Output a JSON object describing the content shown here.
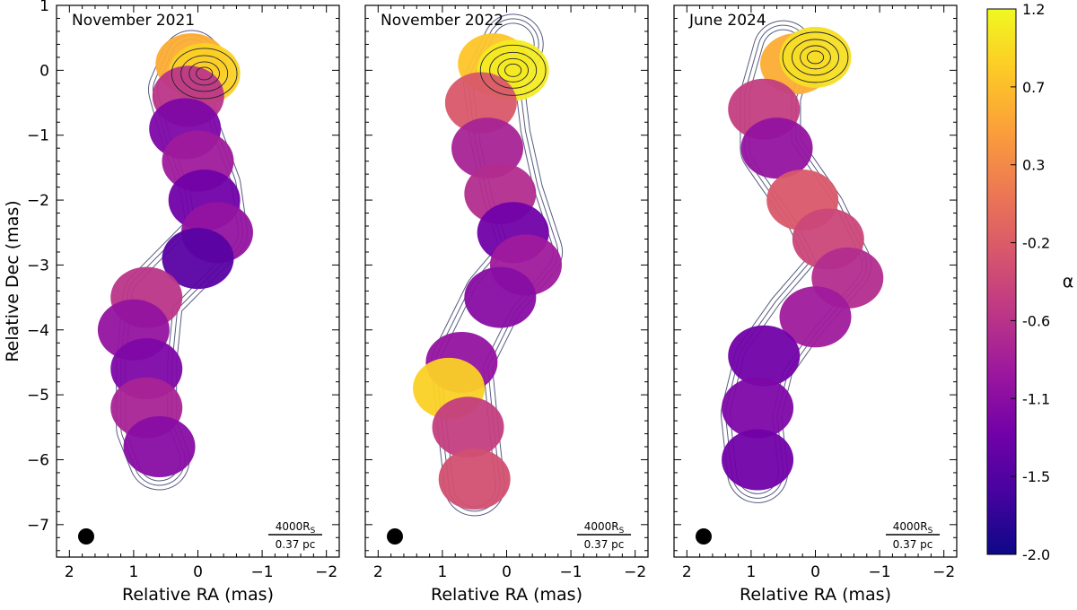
{
  "chart_data": {
    "type": "heatmap",
    "xlabel": "Relative RA (mas)",
    "ylabel": "Relative Dec (mas)",
    "xlim": [
      2.2,
      -2.2
    ],
    "ylim": [
      -7.5,
      1.0
    ],
    "x_ticks": [
      2,
      1,
      0,
      -1,
      -2
    ],
    "x_tick_labels": [
      "2",
      "1",
      "0",
      "−1",
      "−2"
    ],
    "y_ticks": [
      1,
      0,
      -1,
      -2,
      -3,
      -4,
      -5,
      -6,
      -7
    ],
    "y_tick_labels": [
      "1",
      "0",
      "−1",
      "−2",
      "−3",
      "−4",
      "−5",
      "−6",
      "−7"
    ],
    "panels": [
      {
        "title": "November 2021",
        "jet_path": [
          [
            0.1,
            0.15
          ],
          [
            0.3,
            -0.3
          ],
          [
            0.1,
            -1.0
          ],
          [
            -0.2,
            -1.8
          ],
          [
            -0.3,
            -2.5
          ],
          [
            0.7,
            -3.5
          ],
          [
            0.8,
            -4.5
          ],
          [
            0.8,
            -5.5
          ],
          [
            0.6,
            -6.0
          ]
        ],
        "spine": [
          {
            "x": 0.1,
            "y": 0.1,
            "a": 0.6
          },
          {
            "x": -0.1,
            "y": -0.05,
            "a": 0.9
          },
          {
            "x": 0.15,
            "y": -0.4,
            "a": -0.6
          },
          {
            "x": 0.2,
            "y": -0.9,
            "a": -1.2
          },
          {
            "x": 0.0,
            "y": -1.4,
            "a": -0.9
          },
          {
            "x": -0.1,
            "y": -2.0,
            "a": -1.3
          },
          {
            "x": -0.3,
            "y": -2.5,
            "a": -1.0
          },
          {
            "x": 0.0,
            "y": -2.9,
            "a": -1.5
          },
          {
            "x": 0.8,
            "y": -3.5,
            "a": -0.6
          },
          {
            "x": 1.0,
            "y": -4.0,
            "a": -1.0
          },
          {
            "x": 0.8,
            "y": -4.6,
            "a": -1.2
          },
          {
            "x": 0.8,
            "y": -5.2,
            "a": -0.8
          },
          {
            "x": 0.6,
            "y": -5.8,
            "a": -1.1
          }
        ]
      },
      {
        "title": "November 2022",
        "jet_path": [
          [
            -0.1,
            0.4
          ],
          [
            0.2,
            -0.2
          ],
          [
            0.1,
            -1.0
          ],
          [
            -0.1,
            -1.9
          ],
          [
            -0.4,
            -2.8
          ],
          [
            0.2,
            -3.5
          ],
          [
            0.7,
            -4.5
          ],
          [
            0.6,
            -5.5
          ],
          [
            0.5,
            -6.4
          ]
        ],
        "spine": [
          {
            "x": 0.2,
            "y": 0.1,
            "a": 0.8
          },
          {
            "x": -0.1,
            "y": 0.0,
            "a": 1.1
          },
          {
            "x": 0.4,
            "y": -0.5,
            "a": -0.2
          },
          {
            "x": 0.3,
            "y": -1.2,
            "a": -0.8
          },
          {
            "x": 0.1,
            "y": -1.9,
            "a": -0.7
          },
          {
            "x": -0.1,
            "y": -2.5,
            "a": -1.3
          },
          {
            "x": -0.3,
            "y": -3.0,
            "a": -0.9
          },
          {
            "x": 0.1,
            "y": -3.5,
            "a": -1.1
          },
          {
            "x": 0.7,
            "y": -4.5,
            "a": -1.0
          },
          {
            "x": 0.9,
            "y": -4.9,
            "a": 0.9
          },
          {
            "x": 0.6,
            "y": -5.5,
            "a": -0.5
          },
          {
            "x": 0.5,
            "y": -6.3,
            "a": -0.3
          }
        ]
      },
      {
        "title": "June 2024",
        "jet_path": [
          [
            0.5,
            0.3
          ],
          [
            0.7,
            -0.4
          ],
          [
            0.7,
            -1.2
          ],
          [
            0.0,
            -2.2
          ],
          [
            -0.4,
            -3.0
          ],
          [
            0.3,
            -3.8
          ],
          [
            0.8,
            -4.5
          ],
          [
            1.0,
            -5.3
          ],
          [
            0.9,
            -6.2
          ]
        ],
        "spine": [
          {
            "x": 0.3,
            "y": 0.1,
            "a": 0.6
          },
          {
            "x": 0.0,
            "y": 0.2,
            "a": 1.0
          },
          {
            "x": 0.8,
            "y": -0.6,
            "a": -0.5
          },
          {
            "x": 0.6,
            "y": -1.2,
            "a": -1.0
          },
          {
            "x": 0.2,
            "y": -2.0,
            "a": -0.2
          },
          {
            "x": -0.2,
            "y": -2.6,
            "a": -0.4
          },
          {
            "x": -0.5,
            "y": -3.2,
            "a": -0.7
          },
          {
            "x": 0.0,
            "y": -3.8,
            "a": -0.9
          },
          {
            "x": 0.8,
            "y": -4.4,
            "a": -1.3
          },
          {
            "x": 0.9,
            "y": -5.2,
            "a": -1.2
          },
          {
            "x": 0.9,
            "y": -6.0,
            "a": -1.3
          }
        ]
      }
    ],
    "scale_bar": {
      "top_label": "4000R",
      "top_subscript": "S",
      "bottom_label": "0.37 pc"
    },
    "colorbar": {
      "label": "α",
      "range": [
        -2.0,
        1.2
      ],
      "tick_labels": [
        "1.2",
        "0.7",
        "0.3",
        "-0.2",
        "-0.6",
        "-1.1",
        "-1.5",
        "-2.0"
      ],
      "colormap": "plasma",
      "colors": [
        "#0d0887",
        "#46039f",
        "#7201a8",
        "#9c179e",
        "#bd3786",
        "#d8576b",
        "#ed7953",
        "#fb9f3a",
        "#fdca26",
        "#f0f921"
      ]
    },
    "contour_color": "#3a3f6a",
    "beam_color": "#000000"
  }
}
